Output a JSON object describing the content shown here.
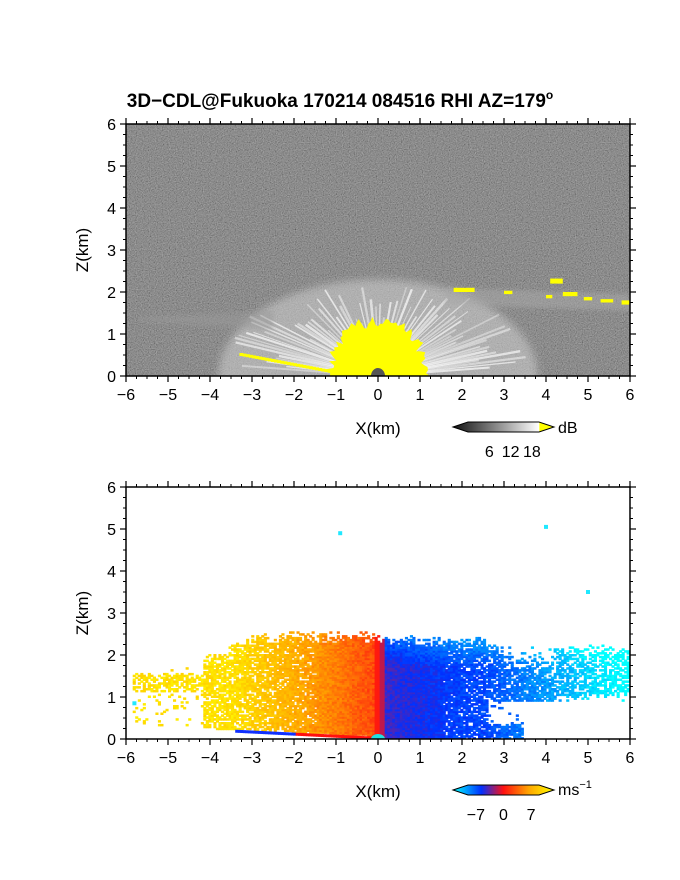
{
  "title": "3D−CDL@Fukuoka 170214 084516 RHI AZ=179",
  "title_degree_mark": "o",
  "chart_data": [
    {
      "type": "heatmap",
      "quantity": "backscatter",
      "xlabel": "X(km)",
      "ylabel": "Z(km)",
      "xlim": [
        -6,
        6
      ],
      "ylim": [
        0,
        6
      ],
      "x_ticks": [
        "−6",
        "−5",
        "−4",
        "−3",
        "−2",
        "−1",
        "0",
        "1",
        "2",
        "3",
        "4",
        "5",
        "6"
      ],
      "y_ticks": [
        "0",
        "1",
        "2",
        "3",
        "4",
        "5",
        "6"
      ],
      "background": "noise gray",
      "colorbar": {
        "unit": "dB",
        "tick_labels": [
          "6",
          "12",
          "18"
        ],
        "tick_values": [
          6,
          12,
          18
        ],
        "range": [
          0,
          20
        ],
        "colors": [
          "#111111",
          "#ffffff",
          "#ffff00"
        ]
      },
      "features": {
        "bright_fan_top_km": 2.3,
        "yellow_core_top_km": 1.3,
        "yellow_layer_x_km": [
          1.8,
          6.0
        ],
        "yellow_layer_z_km": [
          1.7,
          2.3
        ]
      }
    },
    {
      "type": "heatmap",
      "quantity": "doppler velocity",
      "xlabel": "X(km)",
      "ylabel": "Z(km)",
      "xlim": [
        -6,
        6
      ],
      "ylim": [
        0,
        6
      ],
      "x_ticks": [
        "−6",
        "−5",
        "−4",
        "−3",
        "−2",
        "−1",
        "0",
        "1",
        "2",
        "3",
        "4",
        "5",
        "6"
      ],
      "y_ticks": [
        "0",
        "1",
        "2",
        "3",
        "4",
        "5",
        "6"
      ],
      "background": "white",
      "colorbar": {
        "unit": "ms",
        "unit_exponent": "−1",
        "tick_labels": [
          "−7",
          "0",
          "7"
        ],
        "tick_values": [
          -7,
          0,
          7
        ],
        "range": [
          -9,
          9
        ],
        "colors": [
          "#00ffff",
          "#0030ff",
          "#ff1010",
          "#ffa500",
          "#ffff00"
        ]
      },
      "features": {
        "echo_top_km": 2.4,
        "negative_side": "x > 0 (blue)",
        "positive_side": "x < 0 (red to yellow)",
        "isolated_points_km": [
          [
            -0.9,
            4.9
          ],
          [
            4.0,
            5.05
          ],
          [
            5.0,
            3.5
          ],
          [
            -5.8,
            0.85
          ]
        ]
      }
    }
  ]
}
